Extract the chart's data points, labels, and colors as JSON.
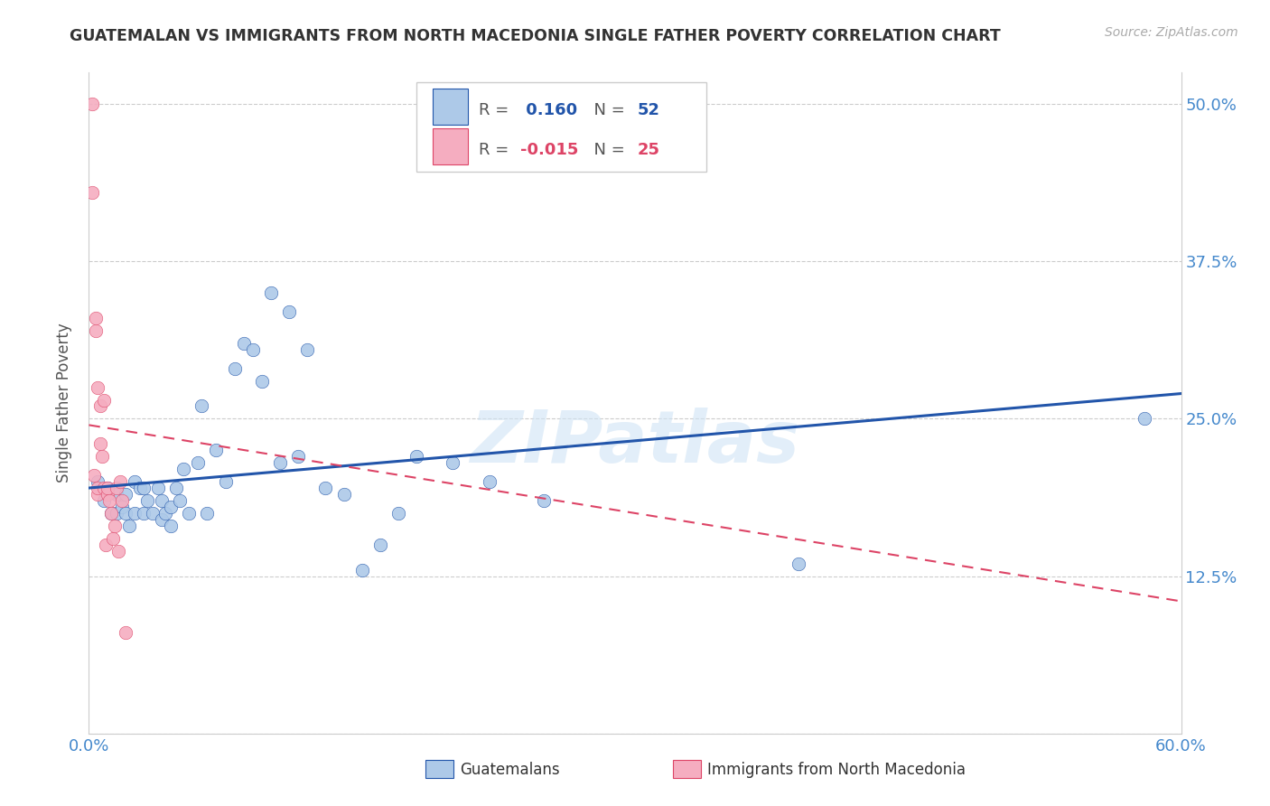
{
  "title": "GUATEMALAN VS IMMIGRANTS FROM NORTH MACEDONIA SINGLE FATHER POVERTY CORRELATION CHART",
  "source": "Source: ZipAtlas.com",
  "ylabel": "Single Father Poverty",
  "x_min": 0.0,
  "x_max": 0.6,
  "y_min": 0.0,
  "y_max": 0.525,
  "x_ticks": [
    0.0,
    0.1,
    0.2,
    0.3,
    0.4,
    0.5,
    0.6
  ],
  "x_tick_labels": [
    "0.0%",
    "",
    "",
    "",
    "",
    "",
    "60.0%"
  ],
  "y_ticks": [
    0.0,
    0.125,
    0.25,
    0.375,
    0.5
  ],
  "y_tick_labels": [
    "",
    "12.5%",
    "25.0%",
    "37.5%",
    "50.0%"
  ],
  "blue_R": 0.16,
  "blue_N": 52,
  "pink_R": -0.015,
  "pink_N": 25,
  "legend_label_blue": "Guatemalans",
  "legend_label_pink": "Immigrants from North Macedonia",
  "blue_color": "#adc9e8",
  "pink_color": "#f5adc0",
  "blue_line_color": "#2255aa",
  "pink_line_color": "#dd4466",
  "watermark": "ZIPatlas",
  "blue_scatter_x": [
    0.005,
    0.008,
    0.01,
    0.012,
    0.015,
    0.015,
    0.018,
    0.02,
    0.02,
    0.022,
    0.025,
    0.025,
    0.028,
    0.03,
    0.03,
    0.032,
    0.035,
    0.038,
    0.04,
    0.04,
    0.042,
    0.045,
    0.045,
    0.048,
    0.05,
    0.052,
    0.055,
    0.06,
    0.062,
    0.065,
    0.07,
    0.075,
    0.08,
    0.085,
    0.09,
    0.095,
    0.1,
    0.105,
    0.11,
    0.115,
    0.12,
    0.13,
    0.14,
    0.15,
    0.16,
    0.17,
    0.18,
    0.2,
    0.22,
    0.25,
    0.39,
    0.58
  ],
  "blue_scatter_y": [
    0.2,
    0.185,
    0.195,
    0.175,
    0.19,
    0.175,
    0.18,
    0.175,
    0.19,
    0.165,
    0.175,
    0.2,
    0.195,
    0.175,
    0.195,
    0.185,
    0.175,
    0.195,
    0.17,
    0.185,
    0.175,
    0.18,
    0.165,
    0.195,
    0.185,
    0.21,
    0.175,
    0.215,
    0.26,
    0.175,
    0.225,
    0.2,
    0.29,
    0.31,
    0.305,
    0.28,
    0.35,
    0.215,
    0.335,
    0.22,
    0.305,
    0.195,
    0.19,
    0.13,
    0.15,
    0.175,
    0.22,
    0.215,
    0.2,
    0.185,
    0.135,
    0.25
  ],
  "pink_scatter_x": [
    0.002,
    0.002,
    0.003,
    0.004,
    0.004,
    0.005,
    0.005,
    0.005,
    0.006,
    0.006,
    0.007,
    0.008,
    0.008,
    0.009,
    0.01,
    0.01,
    0.011,
    0.012,
    0.013,
    0.014,
    0.015,
    0.016,
    0.017,
    0.018,
    0.02
  ],
  "pink_scatter_y": [
    0.5,
    0.43,
    0.205,
    0.32,
    0.33,
    0.19,
    0.275,
    0.195,
    0.26,
    0.23,
    0.22,
    0.265,
    0.195,
    0.15,
    0.19,
    0.195,
    0.185,
    0.175,
    0.155,
    0.165,
    0.195,
    0.145,
    0.2,
    0.185,
    0.08
  ],
  "blue_line_x0": 0.0,
  "blue_line_x1": 0.6,
  "blue_line_y0": 0.195,
  "blue_line_y1": 0.27,
  "pink_line_x0": 0.0,
  "pink_line_x1": 0.6,
  "pink_line_y0": 0.245,
  "pink_line_y1": 0.105
}
